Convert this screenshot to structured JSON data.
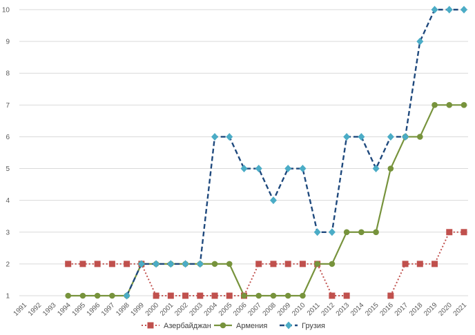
{
  "chart_data": {
    "type": "line",
    "categories": [
      "1991",
      "1992",
      "1993",
      "1994",
      "1995",
      "1996",
      "1997",
      "1998",
      "1999",
      "2000",
      "2001",
      "2002",
      "2003",
      "2004",
      "2005",
      "2006",
      "2007",
      "2008",
      "2009",
      "2010",
      "2011",
      "2012",
      "2013",
      "2014",
      "2015",
      "2016",
      "2017",
      "2018",
      "2019",
      "2020",
      "2021"
    ],
    "ylim": [
      1,
      10
    ],
    "yticks": [
      1,
      2,
      3,
      4,
      5,
      6,
      7,
      8,
      9,
      10
    ],
    "grid": true,
    "legend": "bottom",
    "series": [
      {
        "name": "Азербайджан",
        "color": "#c0504d",
        "values": [
          null,
          null,
          null,
          2,
          2,
          2,
          2,
          2,
          2,
          1,
          1,
          1,
          1,
          1,
          1,
          1,
          2,
          2,
          2,
          2,
          2,
          1,
          1,
          null,
          null,
          1,
          2,
          2,
          2,
          3,
          3
        ]
      },
      {
        "name": "Армения",
        "color": "#77933c",
        "values": [
          null,
          null,
          null,
          1,
          1,
          1,
          1,
          1,
          2,
          2,
          2,
          2,
          2,
          2,
          2,
          1,
          1,
          1,
          1,
          1,
          2,
          2,
          3,
          3,
          3,
          5,
          6,
          6,
          7,
          7,
          7
        ]
      },
      {
        "name": "Грузия",
        "color": "#4bacc6",
        "line_color": "#1f497d",
        "values": [
          null,
          null,
          null,
          null,
          null,
          null,
          null,
          1,
          2,
          2,
          2,
          2,
          2,
          6,
          6,
          5,
          5,
          4,
          5,
          5,
          3,
          3,
          6,
          6,
          5,
          6,
          6,
          9,
          10,
          10,
          10
        ]
      }
    ]
  }
}
